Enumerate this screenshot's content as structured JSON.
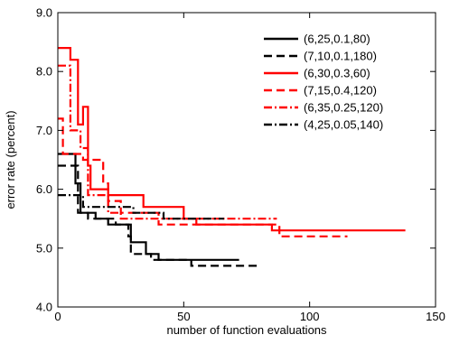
{
  "chart_data": {
    "type": "line",
    "xlabel": "number of function evaluations",
    "ylabel": "error rate (percent)",
    "xlim": [
      0,
      150
    ],
    "ylim": [
      4.0,
      9.0
    ],
    "x_ticks": [
      0,
      50,
      100,
      150
    ],
    "x_tick_labels": [
      "0",
      "50",
      "100",
      "150"
    ],
    "y_ticks": [
      4.0,
      5.0,
      6.0,
      7.0,
      8.0,
      9.0
    ],
    "y_tick_labels": [
      "4.0",
      "5.0",
      "6.0",
      "7.0",
      "8.0",
      "9.0"
    ],
    "grid": false,
    "legend_position": "top-right",
    "series": [
      {
        "name": "(6,25,0.1,80)",
        "color": "#000000",
        "style": "solid",
        "points": [
          [
            0,
            6.6
          ],
          [
            7,
            6.6
          ],
          [
            7,
            6.1
          ],
          [
            9,
            6.1
          ],
          [
            9,
            5.6
          ],
          [
            15,
            5.6
          ],
          [
            15,
            5.5
          ],
          [
            20,
            5.5
          ],
          [
            20,
            5.4
          ],
          [
            25,
            5.4
          ],
          [
            25,
            5.4
          ],
          [
            29,
            5.4
          ],
          [
            29,
            5.1
          ],
          [
            35,
            5.1
          ],
          [
            35,
            4.9
          ],
          [
            40,
            4.9
          ],
          [
            40,
            4.8
          ],
          [
            72,
            4.8
          ]
        ]
      },
      {
        "name": "(7,10,0.1,180)",
        "color": "#000000",
        "style": "dashed",
        "points": [
          [
            0,
            6.4
          ],
          [
            8,
            6.4
          ],
          [
            8,
            5.6
          ],
          [
            12,
            5.6
          ],
          [
            12,
            5.5
          ],
          [
            23,
            5.5
          ],
          [
            23,
            5.4
          ],
          [
            28,
            5.4
          ],
          [
            28,
            5.2
          ],
          [
            29,
            5.2
          ],
          [
            29,
            4.9
          ],
          [
            37,
            4.9
          ],
          [
            37,
            4.8
          ],
          [
            53,
            4.8
          ],
          [
            53,
            4.7
          ],
          [
            80,
            4.7
          ]
        ]
      },
      {
        "name": "(6,30,0.3,60)",
        "color": "#ff0000",
        "style": "solid",
        "points": [
          [
            0,
            8.4
          ],
          [
            5,
            8.4
          ],
          [
            5,
            8.2
          ],
          [
            8,
            8.2
          ],
          [
            8,
            7.1
          ],
          [
            10,
            7.1
          ],
          [
            10,
            7.4
          ],
          [
            12,
            7.4
          ],
          [
            12,
            6.4
          ],
          [
            13,
            6.4
          ],
          [
            13,
            6.0
          ],
          [
            20,
            6.0
          ],
          [
            20,
            5.9
          ],
          [
            34,
            5.9
          ],
          [
            34,
            5.7
          ],
          [
            50,
            5.7
          ],
          [
            50,
            5.5
          ],
          [
            55,
            5.5
          ],
          [
            55,
            5.4
          ],
          [
            85,
            5.4
          ],
          [
            85,
            5.3
          ],
          [
            138,
            5.3
          ]
        ]
      },
      {
        "name": "(7,15,0.4,120)",
        "color": "#ff0000",
        "style": "dashed",
        "points": [
          [
            0,
            7.2
          ],
          [
            2,
            7.2
          ],
          [
            2,
            6.6
          ],
          [
            10,
            6.6
          ],
          [
            10,
            6.5
          ],
          [
            18,
            6.5
          ],
          [
            18,
            6.1
          ],
          [
            20,
            6.1
          ],
          [
            20,
            5.8
          ],
          [
            25,
            5.8
          ],
          [
            25,
            5.6
          ],
          [
            40,
            5.6
          ],
          [
            40,
            5.4
          ],
          [
            88,
            5.4
          ],
          [
            88,
            5.2
          ],
          [
            115,
            5.2
          ]
        ]
      },
      {
        "name": "(6,35,0.25,120)",
        "color": "#ff0000",
        "style": "dashdot",
        "points": [
          [
            0,
            8.1
          ],
          [
            5,
            8.1
          ],
          [
            5,
            7.0
          ],
          [
            9,
            7.0
          ],
          [
            9,
            6.7
          ],
          [
            12,
            6.7
          ],
          [
            12,
            5.9
          ],
          [
            20,
            5.9
          ],
          [
            20,
            5.6
          ],
          [
            25,
            5.6
          ],
          [
            25,
            5.5
          ],
          [
            49,
            5.5
          ],
          [
            49,
            5.5
          ],
          [
            87,
            5.5
          ]
        ]
      },
      {
        "name": "(4,25,0.05,140)",
        "color": "#000000",
        "style": "dashdot",
        "points": [
          [
            0,
            5.9
          ],
          [
            10,
            5.9
          ],
          [
            10,
            5.7
          ],
          [
            30,
            5.7
          ],
          [
            30,
            5.6
          ],
          [
            42,
            5.6
          ],
          [
            42,
            5.5
          ],
          [
            66,
            5.5
          ]
        ]
      }
    ]
  }
}
